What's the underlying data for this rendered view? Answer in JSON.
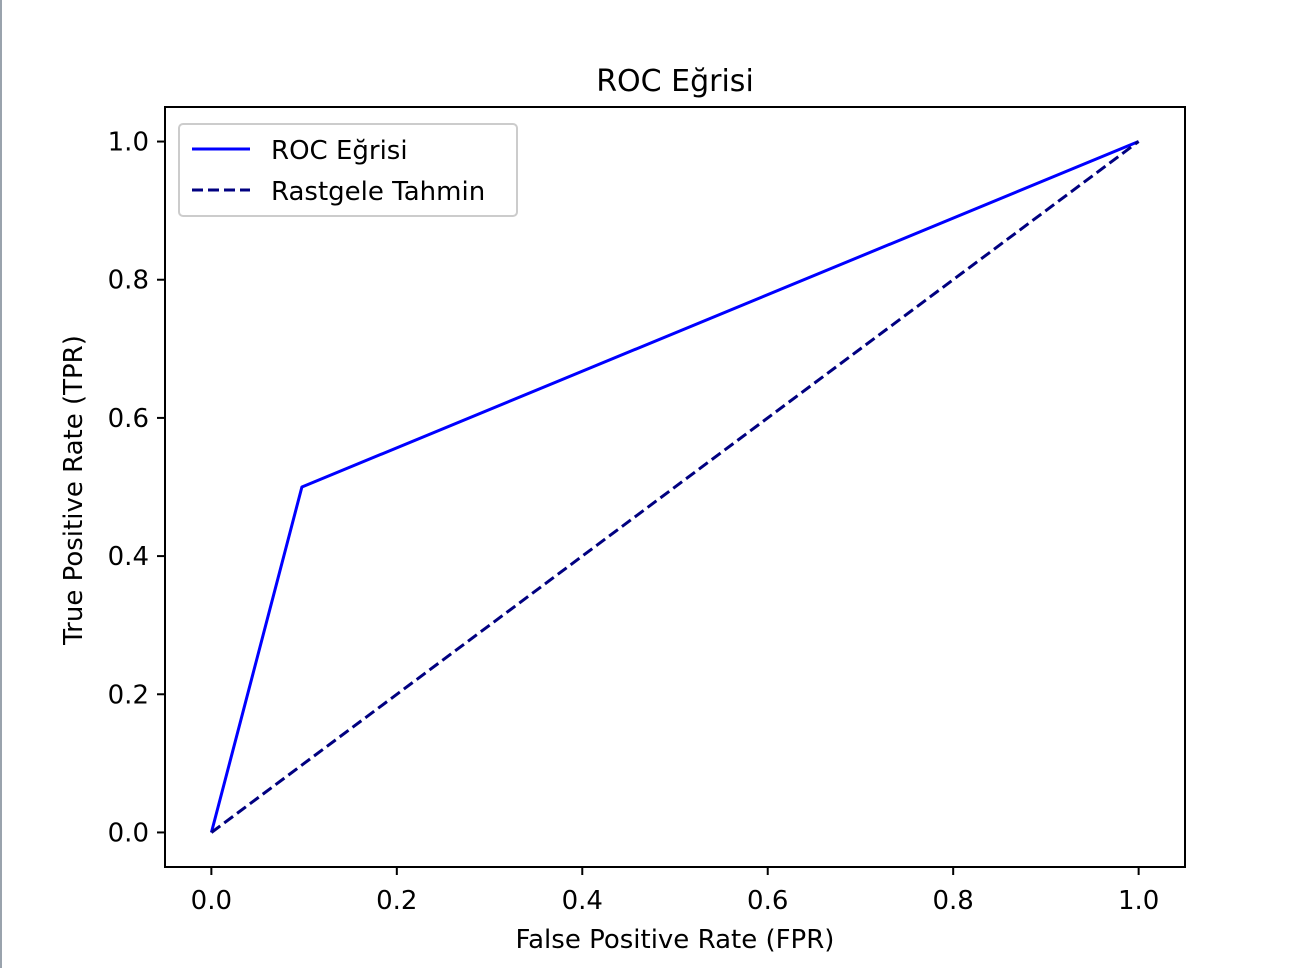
{
  "chart_data": {
    "type": "line",
    "title": "ROC Eğrisi",
    "xlabel": "False Positive Rate (FPR)",
    "ylabel": "True Positive Rate (TPR)",
    "xlim": [
      -0.05,
      1.05
    ],
    "ylim": [
      -0.05,
      1.05
    ],
    "xticks": [
      "0.0",
      "0.2",
      "0.4",
      "0.6",
      "0.8",
      "1.0"
    ],
    "yticks": [
      "0.0",
      "0.2",
      "0.4",
      "0.6",
      "0.8",
      "1.0"
    ],
    "grid": false,
    "legend": {
      "position": "top-left",
      "entries": [
        "ROC Eğrisi",
        "Rastgele Tahmin"
      ]
    },
    "series": [
      {
        "name": "ROC Eğrisi",
        "color": "#0000ff",
        "linestyle": "solid",
        "x": [
          0.0,
          0.0976,
          1.0
        ],
        "y": [
          0.0,
          0.5,
          1.0
        ]
      },
      {
        "name": "Rastgele Tahmin",
        "color": "#000080",
        "linestyle": "dashed",
        "x": [
          0.0,
          1.0
        ],
        "y": [
          0.0,
          1.0
        ]
      }
    ]
  }
}
